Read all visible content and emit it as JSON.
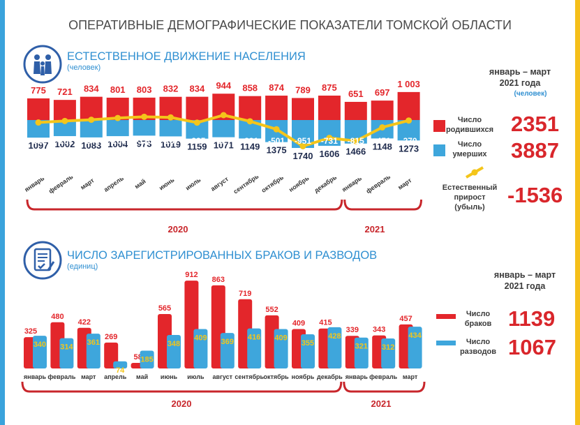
{
  "title": "ОПЕРАТИВНЫЕ ДЕМОГРАФИЧЕСКИЕ ПОКАЗАТЕЛИ ТОМСКОЙ ОБЛАСТИ",
  "colors": {
    "red": "#e3262b",
    "blue": "#3ea6dc",
    "yellow": "#f4c51a",
    "accent_blue": "#2f8fd1",
    "value_red": "#d9262b"
  },
  "section1": {
    "title": "ЕСТЕСТВЕННОЕ ДВИЖЕНИЕ НАСЕЛЕНИЯ",
    "unit": "(человек)",
    "icon": "family-icon",
    "period": {
      "line1": "январь – март",
      "line2": "2021 года",
      "unit": "(человек)"
    },
    "legend": {
      "births_label": [
        "Число",
        "родившихся"
      ],
      "births_value": "2351",
      "deaths_label": [
        "Число",
        "умерших"
      ],
      "deaths_value": "3887",
      "growth_label": [
        "Естественный",
        "прирост",
        "(убыль)"
      ],
      "growth_value": "-1536"
    },
    "years": [
      "2020",
      "2021"
    ]
  },
  "section2": {
    "title": "ЧИСЛО ЗАРЕГИСТРИРОВАННЫХ БРАКОВ И РАЗВОДОВ",
    "unit": "(единиц)",
    "icon": "document-icon",
    "period": {
      "line1": "январь – март",
      "line2": "2021 года"
    },
    "legend": {
      "marriages_label": [
        "Число",
        "браков"
      ],
      "marriages_value": "1139",
      "divorces_label": [
        "Число",
        "разводов"
      ],
      "divorces_value": "1067"
    },
    "years": [
      "2020",
      "2021"
    ]
  },
  "chart_data": [
    {
      "type": "bar",
      "categories": [
        "январь",
        "февраль",
        "март",
        "апрель",
        "май",
        "июнь",
        "июль",
        "август",
        "сентябрь",
        "октябрь",
        "ноябрь",
        "декабрь",
        "январь",
        "февраль",
        "март"
      ],
      "series": [
        {
          "name": "Число родившихся",
          "values": [
            775,
            721,
            834,
            801,
            803,
            832,
            834,
            944,
            858,
            874,
            789,
            875,
            651,
            697,
            1003
          ],
          "labels": [
            "775",
            "721",
            "834",
            "801",
            "803",
            "832",
            "834",
            "944",
            "858",
            "874",
            "789",
            "875",
            "651",
            "697",
            "1 003"
          ]
        },
        {
          "name": "Число умерших",
          "values": [
            1097,
            1002,
            1083,
            1004,
            973,
            1019,
            1159,
            1071,
            1149,
            1375,
            1740,
            1606,
            1466,
            1148,
            1273
          ]
        },
        {
          "name": "Естественный прирост (убыль)",
          "values": [
            -322,
            -281,
            -249,
            -203,
            -170,
            -187,
            -325,
            -127,
            -291,
            -501,
            -951,
            -731,
            -815,
            -451,
            -270
          ]
        }
      ]
    },
    {
      "type": "bar",
      "categories": [
        "январь",
        "февраль",
        "март",
        "апрель",
        "май",
        "июнь",
        "июль",
        "август",
        "сентябрь",
        "октябрь",
        "ноябрь",
        "декабрь",
        "январь",
        "февраль",
        "март"
      ],
      "series": [
        {
          "name": "Число браков",
          "values": [
            325,
            480,
            422,
            269,
            58,
            565,
            912,
            863,
            719,
            552,
            409,
            415,
            339,
            343,
            457
          ]
        },
        {
          "name": "Число разводов",
          "values": [
            340,
            314,
            361,
            74,
            185,
            348,
            409,
            369,
            416,
            409,
            355,
            428,
            321,
            312,
            434
          ]
        }
      ]
    }
  ]
}
